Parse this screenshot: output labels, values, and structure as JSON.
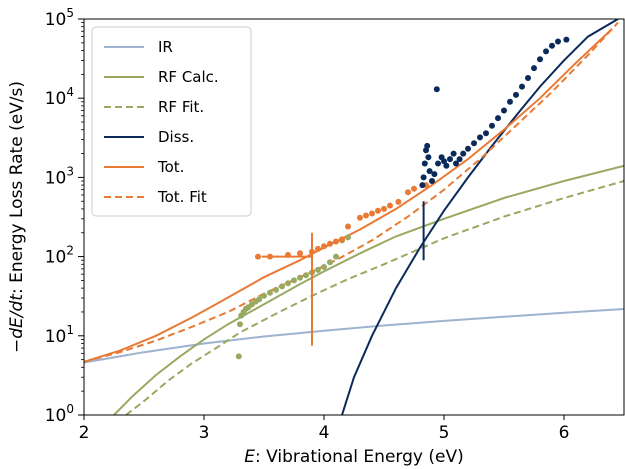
{
  "chart_data": {
    "type": "line",
    "xlabel_italic": "E",
    "xlabel_rest": ": Vibrational Energy (eV)",
    "ylabel_prefix": "−",
    "ylabel_italic": "dE/dt",
    "ylabel_rest": ": Energy Loss Rate (eV/s)",
    "xlim": [
      2,
      6.5
    ],
    "ylim_log10": [
      0,
      5
    ],
    "y_scale": "log",
    "xticks": [
      2,
      3,
      4,
      5,
      6
    ],
    "xtick_labels": [
      "2",
      "3",
      "4",
      "5",
      "6"
    ],
    "yticks_log10": [
      0,
      1,
      2,
      3,
      4,
      5
    ],
    "grid": false,
    "legend_placement": "top-left",
    "series": [
      {
        "name": "IR",
        "color": "#9db3cf",
        "dash": "solid",
        "x": [
          2.0,
          2.5,
          3.0,
          3.5,
          4.0,
          4.5,
          5.0,
          5.5,
          6.0,
          6.5
        ],
        "y": [
          4.6,
          6.2,
          8.0,
          9.8,
          11.6,
          13.5,
          15.4,
          17.4,
          19.5,
          21.8
        ]
      },
      {
        "name": "RF Calc.",
        "color": "#98a962",
        "dash": "solid",
        "x": [
          2.25,
          2.4,
          2.6,
          2.8,
          3.0,
          3.2,
          3.5,
          3.8,
          4.0,
          4.3,
          4.6,
          5.0,
          5.5,
          6.0,
          6.5
        ],
        "y": [
          1.0,
          1.7,
          3.2,
          5.5,
          9.0,
          14.0,
          25.0,
          45.0,
          65.0,
          110.0,
          180.0,
          300.0,
          550.0,
          900.0,
          1400.0
        ]
      },
      {
        "name": "RF Fit.",
        "color": "#98a962",
        "dash": "dashed",
        "x": [
          2.35,
          2.5,
          2.7,
          2.9,
          3.1,
          3.3,
          3.6,
          3.9,
          4.2,
          4.5,
          5.0,
          5.5,
          6.0,
          6.5
        ],
        "y": [
          1.0,
          1.5,
          2.7,
          4.5,
          7.0,
          11.0,
          19.0,
          32.0,
          52.0,
          80.0,
          170.0,
          320.0,
          550.0,
          900.0
        ]
      },
      {
        "name": "Diss.",
        "color": "#0b2a5a",
        "dash": "solid",
        "x": [
          4.15,
          4.25,
          4.4,
          4.6,
          4.8,
          5.0,
          5.2,
          5.4,
          5.6,
          5.8,
          6.0,
          6.2,
          6.45
        ],
        "y": [
          1.0,
          3.0,
          10.0,
          40.0,
          130.0,
          380.0,
          1000.0,
          2500.0,
          6000.0,
          14000.0,
          30000.0,
          60000.0,
          100000.0
        ]
      },
      {
        "name": "Tot.",
        "color": "#e97a35",
        "dash": "solid",
        "x": [
          2.0,
          2.3,
          2.6,
          2.9,
          3.1,
          3.3,
          3.5,
          3.8,
          4.0,
          4.3,
          4.6,
          4.9,
          5.2,
          5.5,
          5.8,
          6.1,
          6.4
        ],
        "y": [
          4.7,
          6.5,
          10.0,
          17.0,
          25.0,
          37.0,
          55.0,
          90.0,
          130.0,
          220.0,
          400.0,
          800.0,
          1700.0,
          4000.0,
          10000.0,
          28000.0,
          75000.0
        ]
      },
      {
        "name": "Tot. Fit",
        "color": "#e97a35",
        "dash": "dashed",
        "x": [
          2.0,
          2.3,
          2.6,
          2.9,
          3.2,
          3.5,
          3.8,
          4.1,
          4.4,
          4.7,
          5.0,
          5.3,
          5.6,
          5.9,
          6.2,
          6.45
        ],
        "y": [
          4.7,
          6.2,
          8.7,
          13.0,
          20.0,
          34.0,
          55.0,
          90.0,
          160.0,
          320.0,
          700.0,
          1700.0,
          4500.0,
          12000.0,
          35000.0,
          90000.0
        ]
      }
    ],
    "points": [
      {
        "color": "#98a962",
        "x": [
          3.29,
          3.3,
          3.31,
          3.33,
          3.35,
          3.37,
          3.4,
          3.43,
          3.46,
          3.5,
          3.55,
          3.6,
          3.65,
          3.7,
          3.75,
          3.8,
          3.85,
          3.9,
          3.95,
          4.0,
          4.05,
          4.1,
          4.15,
          4.2
        ],
        "y": [
          5.5,
          14.0,
          18.0,
          20.0,
          22.0,
          23.0,
          25.0,
          27.0,
          29.0,
          32.0,
          35.0,
          38.0,
          42.0,
          46.0,
          50.0,
          54.0,
          58.0,
          63.0,
          68.0,
          74.0,
          85.0,
          100.0,
          160.0,
          175.0
        ]
      },
      {
        "color": "#e97a35",
        "x": [
          3.45,
          3.55,
          3.7,
          3.8,
          3.9,
          3.95,
          4.0,
          4.05,
          4.1,
          4.15,
          4.2,
          4.3,
          4.35,
          4.4,
          4.45,
          4.5,
          4.55,
          4.62,
          4.7,
          4.75,
          4.85,
          4.9
        ],
        "y": [
          100.0,
          100.0,
          105.0,
          110.0,
          115.0,
          125.0,
          135.0,
          145.0,
          155.0,
          165.0,
          240.0,
          310.0,
          330.0,
          350.0,
          380.0,
          400.0,
          440.0,
          490.0,
          650.0,
          720.0,
          800.0,
          900.0
        ]
      },
      {
        "color": "#0b2a5a",
        "x": [
          4.82,
          4.83,
          4.84,
          4.85,
          4.86,
          4.87,
          4.88,
          4.9,
          4.92,
          4.95,
          4.98,
          5.0,
          5.02,
          5.05,
          5.08,
          5.1,
          5.13,
          5.16,
          5.2,
          5.25,
          5.3,
          5.35,
          5.4,
          5.45,
          5.5,
          5.55,
          5.6,
          5.65,
          5.7,
          5.75,
          5.8,
          5.85,
          5.9,
          5.95,
          6.02,
          4.94
        ],
        "y": [
          800.0,
          1000.0,
          1500.0,
          2200.0,
          2500.0,
          1800.0,
          1200.0,
          900.0,
          1100.0,
          1500.0,
          1800.0,
          1600.0,
          1400.0,
          1700.0,
          2000.0,
          1500.0,
          1700.0,
          2000.0,
          2300.0,
          2700.0,
          3200.0,
          3600.0,
          4500.0,
          5600.0,
          7000.0,
          9000.0,
          11000.0,
          14000.0,
          18000.0,
          24000.0,
          31000.0,
          39000.0,
          46000.0,
          52000.0,
          55000.0,
          13000.0
        ]
      }
    ],
    "errorbars": [
      {
        "color": "#e97a35",
        "x": 3.9,
        "y": 100.0,
        "xerr": [
          0.42,
          0.0
        ],
        "y_low": 7.5,
        "y_high": 200.0
      },
      {
        "color": "#0b2a5a",
        "x": 4.83,
        "y": 200.0,
        "xerr": [
          0.0,
          0.0
        ],
        "y_low": 90.0,
        "y_high": 500.0
      }
    ]
  }
}
